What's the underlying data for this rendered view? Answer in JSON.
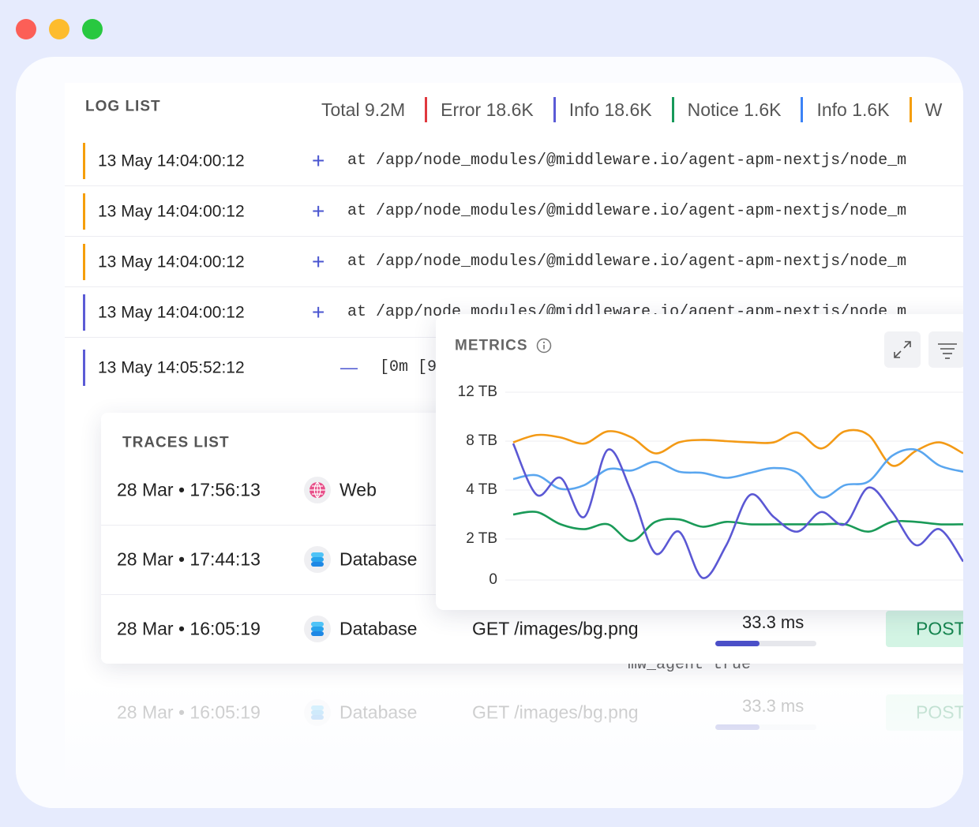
{
  "log_list": {
    "title": "LOG LIST",
    "stats": [
      {
        "text": "Total 9.2M"
      },
      {
        "text": "Error 18.6K",
        "color": "#e0383e"
      },
      {
        "text": "Info 18.6K",
        "color": "#5b5bd6"
      },
      {
        "text": "Notice 1.6K",
        "color": "#17995a"
      },
      {
        "text": "Info 1.6K",
        "color": "#3b82f6"
      },
      {
        "text": "W",
        "color": "#f59e0b"
      }
    ],
    "rows": [
      {
        "time": "13 May 14:04:00:12",
        "toggle": "+",
        "message": "at /app/node_modules/@middleware.io/agent-apm-nextjs/node_m",
        "color": "#f59e0b"
      },
      {
        "time": "13 May 14:04:00:12",
        "toggle": "+",
        "message": "at /app/node_modules/@middleware.io/agent-apm-nextjs/node_m",
        "color": "#f59e0b"
      },
      {
        "time": "13 May 14:04:00:12",
        "toggle": "+",
        "message": "at /app/node_modules/@middleware.io/agent-apm-nextjs/node_m",
        "color": "#f59e0b"
      },
      {
        "time": "13 May 14:04:00:12",
        "toggle": "+",
        "message": "at /app/node_modules/@middleware.io/agent-apm-nextjs/node_m",
        "color": "#5b5bd6"
      },
      {
        "time": "13 May 14:05:52:12",
        "toggle": "—",
        "message": "[0m [9",
        "detail": "mw_agent true",
        "color": "#5b5bd6"
      }
    ]
  },
  "traces_list": {
    "title": "TRACES LIST",
    "rows": [
      {
        "time": "28 Mar • 17:56:13",
        "service": "Web",
        "icon": "web"
      },
      {
        "time": "28 Mar • 17:44:13",
        "service": "Database",
        "icon": "database"
      },
      {
        "time": "28 Mar • 16:05:19",
        "service": "Database",
        "icon": "database",
        "endpoint": "GET /images/bg.png",
        "duration": "33.3 ms",
        "method": "POST"
      },
      {
        "time": "28 Mar • 16:05:19",
        "service": "Database",
        "icon": "database",
        "endpoint": "GET /images/bg.png",
        "duration": "33.3 ms",
        "method": "POST",
        "faded": true
      }
    ]
  },
  "chart_data": {
    "type": "line",
    "title": "METRICS",
    "ylim": [
      0,
      12
    ],
    "yticks": [
      {
        "value": 12,
        "label": "12 TB"
      },
      {
        "value": 8,
        "label": "8 TB"
      },
      {
        "value": 4,
        "label": "4 TB"
      },
      {
        "value": 2,
        "label": "2 TB"
      },
      {
        "value": 0,
        "label": "0"
      }
    ],
    "grid": true,
    "series": [
      {
        "color": "#f39a16",
        "values": [
          7.9,
          8.5,
          8.3,
          7.8,
          8.8,
          8.3,
          7.0,
          7.9,
          8.1,
          8.0,
          7.9,
          7.9,
          8.7,
          7.4,
          8.8,
          8.5,
          6.0,
          7.2,
          7.9,
          7.0
        ]
      },
      {
        "color": "#5aa6ef",
        "values": [
          4.9,
          5.2,
          4.1,
          4.4,
          5.7,
          5.6,
          6.3,
          5.5,
          5.4,
          5.0,
          5.4,
          5.8,
          5.4,
          3.7,
          4.4,
          4.7,
          6.8,
          7.3,
          6.0,
          5.5
        ]
      },
      {
        "color": "#1a9a58",
        "values": [
          3.0,
          3.1,
          2.6,
          2.4,
          2.6,
          1.9,
          2.7,
          2.8,
          2.5,
          2.7,
          2.6,
          2.6,
          2.6,
          2.6,
          2.6,
          2.3,
          2.7,
          2.7,
          2.6,
          2.6
        ]
      },
      {
        "color": "#5b58d4",
        "values": [
          7.8,
          3.8,
          5.0,
          2.9,
          7.3,
          3.9,
          1.3,
          2.3,
          0.1,
          1.7,
          3.8,
          2.9,
          2.3,
          3.1,
          2.6,
          4.2,
          3.1,
          1.7,
          2.4,
          0.9
        ]
      }
    ]
  }
}
